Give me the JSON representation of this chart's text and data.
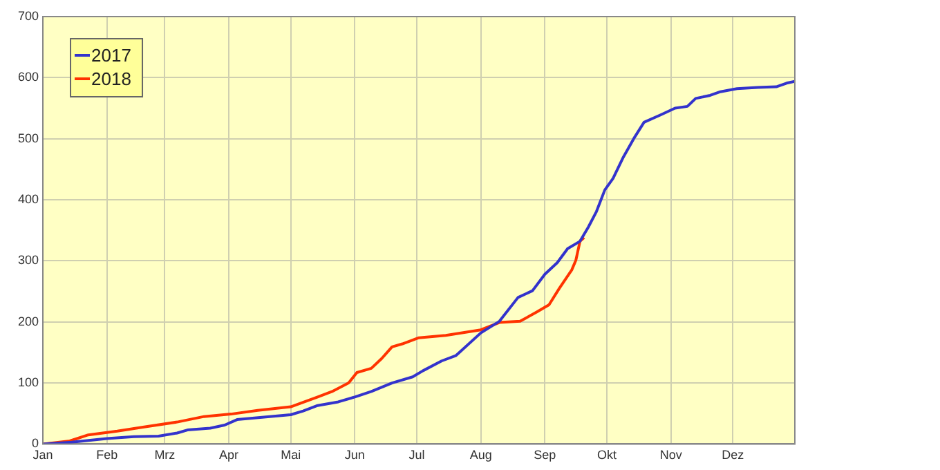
{
  "chart_data": {
    "type": "line",
    "xlim": [
      "--01-01",
      "--12-31"
    ],
    "xticks": [
      {
        "value": "--01-01",
        "label": "Jan"
      },
      {
        "value": "--02-01",
        "label": "Feb"
      },
      {
        "value": "--03-01",
        "label": "Mrz"
      },
      {
        "value": "--04-01",
        "label": "Apr"
      },
      {
        "value": "--05-01",
        "label": "Mai"
      },
      {
        "value": "--06-01",
        "label": "Jun"
      },
      {
        "value": "--07-01",
        "label": "Jul"
      },
      {
        "value": "--08-01",
        "label": "Aug"
      },
      {
        "value": "--09-01",
        "label": "Sep"
      },
      {
        "value": "--10-01",
        "label": "Okt"
      },
      {
        "value": "--11-01",
        "label": "Nov"
      },
      {
        "value": "--12-01",
        "label": "Dez"
      }
    ],
    "ylim": [
      0,
      700
    ],
    "yticks": [
      0,
      100,
      200,
      300,
      400,
      500,
      600,
      700
    ],
    "grid": true,
    "legend": "top left",
    "marker": "none",
    "line_style": "solid",
    "series": [
      {
        "name": "2017",
        "color": "#3333cc",
        "x": [
          "--01-01",
          "--01-15",
          "--02-01",
          "--02-14",
          "--02-26",
          "--03-07",
          "--03-12",
          "--03-23",
          "--03-30",
          "--04-05",
          "--04-18",
          "--05-01",
          "--05-07",
          "--05-14",
          "--05-24",
          "--06-01",
          "--06-09",
          "--06-19",
          "--06-29",
          "--07-04",
          "--07-13",
          "--07-20",
          "--08-01",
          "--08-10",
          "--08-19",
          "--08-26",
          "--09-01",
          "--09-07",
          "--09-12",
          "--09-18",
          "--09-22",
          "--09-26",
          "--09-30",
          "--10-04",
          "--10-09",
          "--10-14",
          "--10-19",
          "--10-27",
          "--11-03",
          "--11-09",
          "--11-13",
          "--11-20",
          "--11-25",
          "--12-03",
          "--12-13",
          "--12-22",
          "--12-27",
          "--12-31"
        ],
        "values": [
          0,
          3,
          9,
          12,
          13,
          18,
          23,
          26,
          31,
          40,
          44,
          48,
          54,
          63,
          69,
          77,
          86,
          100,
          110,
          120,
          136,
          145,
          182,
          201,
          240,
          251,
          278,
          297,
          320,
          332,
          355,
          381,
          416,
          435,
          470,
          500,
          527,
          539,
          550,
          553,
          566,
          571,
          577,
          582,
          584,
          585,
          591,
          594
        ]
      },
      {
        "name": "2018",
        "color": "#ff3300",
        "x": [
          "--01-01",
          "--01-09",
          "--01-14",
          "--01-23",
          "--02-06",
          "--02-19",
          "--03-07",
          "--03-20",
          "--04-02",
          "--04-15",
          "--05-01",
          "--05-06",
          "--05-14",
          "--05-21",
          "--05-29",
          "--06-02",
          "--06-09",
          "--06-14",
          "--06-19",
          "--06-24",
          "--07-02",
          "--07-15",
          "--08-01",
          "--08-10",
          "--08-20",
          "--08-28",
          "--09-03",
          "--09-08",
          "--09-14",
          "--09-16",
          "--09-18",
          "--09-20"
        ],
        "values": [
          0,
          3,
          5,
          15,
          21,
          28,
          36,
          45,
          49,
          55,
          61,
          67,
          77,
          86,
          100,
          117,
          124,
          140,
          159,
          164,
          174,
          178,
          187,
          199,
          201,
          216,
          228,
          255,
          285,
          301,
          332,
          338
        ]
      }
    ]
  }
}
